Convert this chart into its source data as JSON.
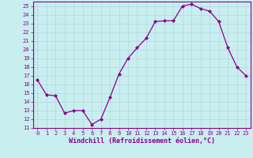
{
  "x": [
    0,
    1,
    2,
    3,
    4,
    5,
    6,
    7,
    8,
    9,
    10,
    11,
    12,
    13,
    14,
    15,
    16,
    17,
    18,
    19,
    20,
    21,
    22,
    23
  ],
  "y": [
    16.5,
    14.8,
    14.7,
    12.7,
    13.0,
    13.0,
    11.4,
    12.0,
    14.5,
    17.2,
    19.0,
    20.2,
    21.3,
    23.2,
    23.3,
    23.3,
    25.0,
    25.2,
    24.7,
    24.4,
    23.2,
    20.2,
    18.0,
    17.0
  ],
  "line_color": "#8B008B",
  "marker": "D",
  "marker_size": 2,
  "bg_color": "#c8eef0",
  "grid_color": "#b0d8dc",
  "xlabel": "Windchill (Refroidissement éolien,°C)",
  "ylim": [
    11,
    25.5
  ],
  "xlim": [
    -0.5,
    23.5
  ],
  "yticks": [
    11,
    12,
    13,
    14,
    15,
    16,
    17,
    18,
    19,
    20,
    21,
    22,
    23,
    24,
    25
  ],
  "xticks": [
    0,
    1,
    2,
    3,
    4,
    5,
    6,
    7,
    8,
    9,
    10,
    11,
    12,
    13,
    14,
    15,
    16,
    17,
    18,
    19,
    20,
    21,
    22,
    23
  ],
  "tick_fontsize": 5.0,
  "xlabel_fontsize": 6.0,
  "label_color": "#8B008B",
  "spine_color": "#8B008B"
}
